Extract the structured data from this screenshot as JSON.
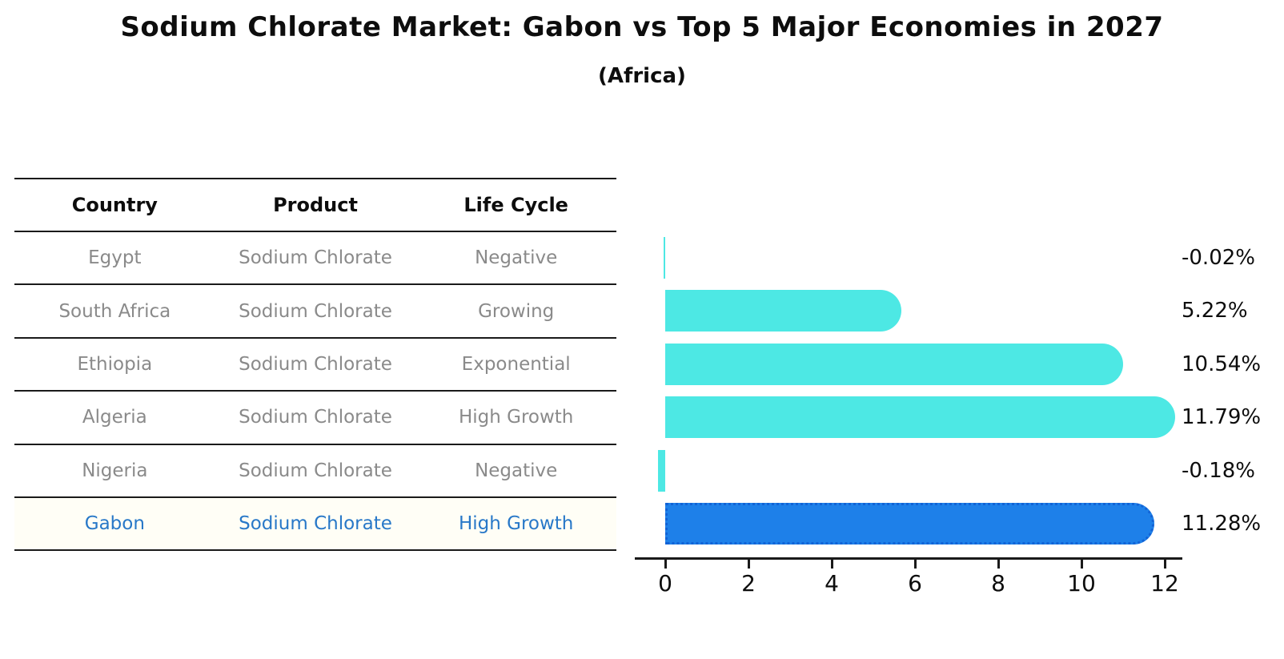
{
  "title": "Sodium Chlorate Market: Gabon vs Top 5 Major Economies in 2027",
  "subtitle": "(Africa)",
  "table": {
    "columns": [
      "Country",
      "Product",
      "Life Cycle"
    ],
    "rows": [
      {
        "country": "Egypt",
        "product": "Sodium Chlorate",
        "life_cycle": "Negative",
        "highlight": false
      },
      {
        "country": "South Africa",
        "product": "Sodium Chlorate",
        "life_cycle": "Growing",
        "highlight": false
      },
      {
        "country": "Ethiopia",
        "product": "Sodium Chlorate",
        "life_cycle": "Exponential",
        "highlight": false
      },
      {
        "country": "Algeria",
        "product": "Sodium Chlorate",
        "life_cycle": "High Growth",
        "highlight": false
      },
      {
        "country": "Nigeria",
        "product": "Sodium Chlorate",
        "life_cycle": "Negative",
        "highlight": false
      },
      {
        "country": "Gabon",
        "product": "Sodium Chlorate",
        "life_cycle": "High Growth",
        "highlight": true
      }
    ]
  },
  "chart_data": {
    "type": "bar",
    "orientation": "horizontal",
    "title": "Sodium Chlorate Market: Gabon vs Top 5 Major Economies in 2027",
    "subtitle": "(Africa)",
    "categories": [
      "Egypt",
      "South Africa",
      "Ethiopia",
      "Algeria",
      "Nigeria",
      "Gabon"
    ],
    "values": [
      -0.02,
      5.22,
      10.54,
      11.79,
      -0.18,
      11.28
    ],
    "value_labels": [
      "-0.02%",
      "5.22%",
      "10.54%",
      "11.79%",
      "-0.18%",
      "11.28%"
    ],
    "unit": "%",
    "x_ticks": [
      0,
      2,
      4,
      6,
      8,
      10,
      12
    ],
    "xlim": [
      -0.8,
      12.8
    ],
    "grid": false,
    "legend": null,
    "bar_color": "#4DE8E4",
    "highlight_index": 5,
    "highlight_bar_color": "#1E80E9",
    "highlight_edge_color": "#1263d6",
    "highlight_text_color": "#2878c8",
    "axis_color": "#1a1a1a",
    "text_color": "#0d0d0d",
    "muted_text_color": "#8a8a8a"
  }
}
